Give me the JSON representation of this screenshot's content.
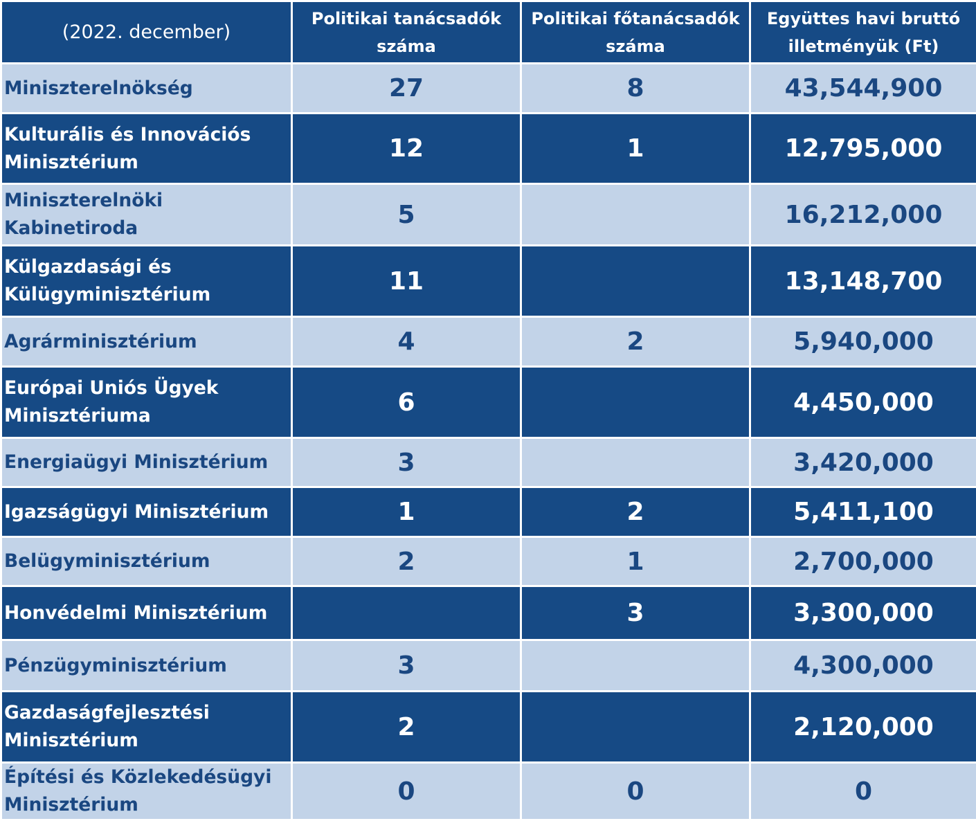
{
  "header": {
    "period": "(2022. december)",
    "col_advisors": "Politikai tanácsadók száma",
    "col_senior_advisors": "Politikai főtanácsadók száma",
    "col_salary": "Együttes havi bruttó illetményük (Ft)"
  },
  "rows": [
    {
      "name": "Miniszterelnökség",
      "advisors": "27",
      "senior_advisors": "8",
      "salary": "43,544,900"
    },
    {
      "name": "Kulturális és Innovációs Minisztérium",
      "advisors": "12",
      "senior_advisors": "1",
      "salary": "12,795,000"
    },
    {
      "name": "Miniszterelnöki Kabinetiroda",
      "advisors": "5",
      "senior_advisors": "",
      "salary": "16,212,000"
    },
    {
      "name": "Külgazdasági és Külügyminisztérium",
      "advisors": "11",
      "senior_advisors": "",
      "salary": "13,148,700"
    },
    {
      "name": "Agrárminisztérium",
      "advisors": "4",
      "senior_advisors": "2",
      "salary": "5,940,000"
    },
    {
      "name": "Európai Uniós Ügyek Minisztériuma",
      "advisors": "6",
      "senior_advisors": "",
      "salary": "4,450,000"
    },
    {
      "name": "Energiaügyi Minisztérium",
      "advisors": "3",
      "senior_advisors": "",
      "salary": "3,420,000"
    },
    {
      "name": "Igazságügyi Minisztérium",
      "advisors": "1",
      "senior_advisors": "2",
      "salary": "5,411,100"
    },
    {
      "name": "Belügyminisztérium",
      "advisors": "2",
      "senior_advisors": "1",
      "salary": "2,700,000"
    },
    {
      "name": "Honvédelmi Minisztérium",
      "advisors": "",
      "senior_advisors": "3",
      "salary": "3,300,000"
    },
    {
      "name": "Pénzügyminisztérium",
      "advisors": "3",
      "senior_advisors": "",
      "salary": "4,300,000"
    },
    {
      "name": "Gazdaságfejlesztési Minisztérium",
      "advisors": "2",
      "senior_advisors": "",
      "salary": "2,120,000"
    },
    {
      "name": "Építési és Közlekedésügyi Minisztérium",
      "advisors": "0",
      "senior_advisors": "0",
      "salary": "0"
    }
  ],
  "colors": {
    "dark_blue": "#164a85",
    "light_blue": "#c2d3e8",
    "text_dark": "#1a4781",
    "border": "#ffffff"
  }
}
